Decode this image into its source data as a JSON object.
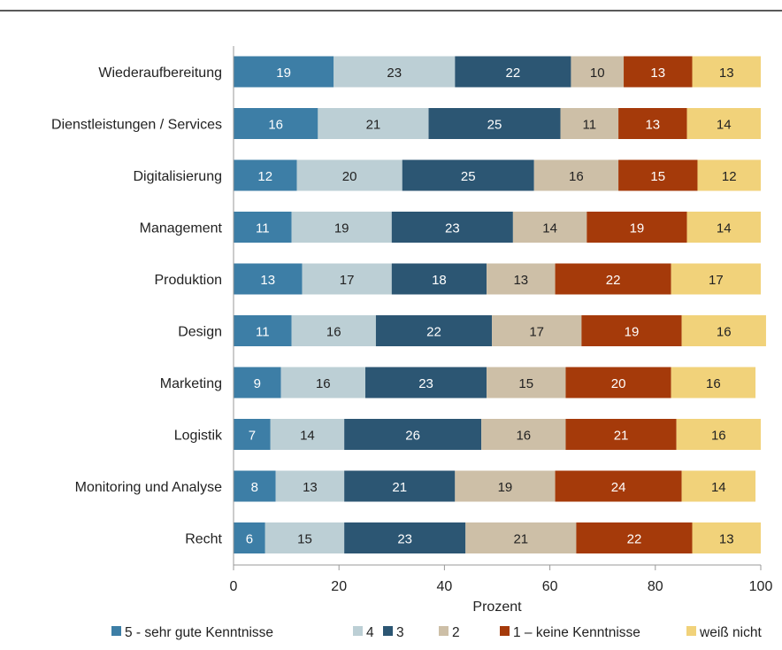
{
  "chart_data": {
    "type": "bar",
    "orientation": "horizontal",
    "stacked": true,
    "xlabel": "Prozent",
    "xlim": [
      0,
      100
    ],
    "xticks": [
      0,
      20,
      40,
      60,
      80,
      100
    ],
    "grid": false,
    "legend_position": "bottom",
    "categories": [
      "Wiederaufbereitung",
      "Dienstleistungen / Services",
      "Digitalisierung",
      "Management",
      "Produktion",
      "Design",
      "Marketing",
      "Logistik",
      "Monitoring und Analyse",
      "Recht"
    ],
    "series": [
      {
        "name": "5 - sehr gute Kenntnisse",
        "color": "#3d7ea6",
        "label_color": "#ffffff",
        "values": [
          19,
          16,
          12,
          11,
          13,
          11,
          9,
          7,
          8,
          6
        ]
      },
      {
        "name": "4",
        "color": "#bccfd5",
        "label_color": "#222222",
        "values": [
          23,
          21,
          20,
          19,
          17,
          16,
          16,
          14,
          13,
          15
        ]
      },
      {
        "name": "3",
        "color": "#2c5673",
        "label_color": "#ffffff",
        "values": [
          22,
          25,
          25,
          23,
          18,
          22,
          23,
          26,
          21,
          23
        ]
      },
      {
        "name": "2",
        "color": "#cdbfa7",
        "label_color": "#222222",
        "values": [
          10,
          11,
          16,
          14,
          13,
          17,
          15,
          16,
          19,
          21
        ]
      },
      {
        "name": "1 – keine Kenntnisse",
        "color": "#a53a0a",
        "label_color": "#ffffff",
        "values": [
          13,
          13,
          15,
          19,
          22,
          19,
          20,
          21,
          24,
          22
        ]
      },
      {
        "name": "weiß nicht",
        "color": "#f1d27a",
        "label_color": "#222222",
        "values": [
          13,
          14,
          12,
          14,
          17,
          16,
          16,
          16,
          14,
          13
        ]
      }
    ]
  }
}
